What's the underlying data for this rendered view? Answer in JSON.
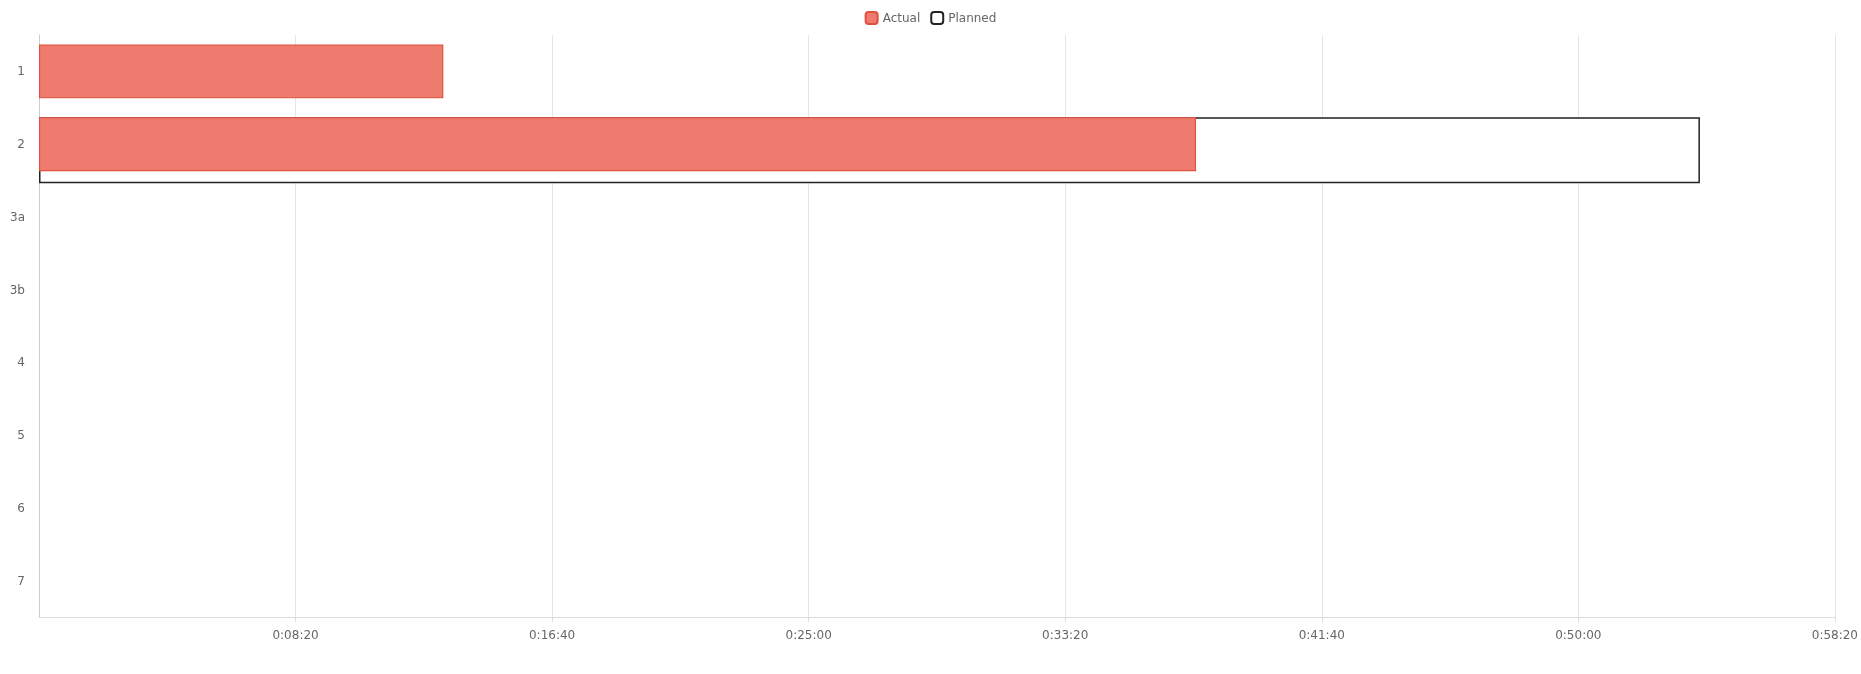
{
  "chart_data": {
    "type": "bar",
    "orientation": "horizontal",
    "categories": [
      "1",
      "2",
      "3a",
      "3b",
      "4",
      "5",
      "6",
      "7"
    ],
    "series": [
      {
        "name": "Planned",
        "color": "#ffffff",
        "values": [
          null,
          3237,
          null,
          null,
          null,
          null,
          null,
          null
        ]
      },
      {
        "name": "Actual",
        "color": "#ee7b6e",
        "values": [
          788,
          2255,
          null,
          null,
          null,
          null,
          null,
          null
        ]
      }
    ],
    "xlim": [
      0,
      3500
    ],
    "xticks": [
      {
        "value": 500,
        "label": "0:08:20"
      },
      {
        "value": 1000,
        "label": "0:16:40"
      },
      {
        "value": 1500,
        "label": "0:25:00"
      },
      {
        "value": 2000,
        "label": "0:33:20"
      },
      {
        "value": 2500,
        "label": "0:41:40"
      },
      {
        "value": 3000,
        "label": "0:50:00"
      },
      {
        "value": 3500,
        "label": "0:58:20"
      }
    ],
    "grid": "x",
    "legend": "top"
  }
}
